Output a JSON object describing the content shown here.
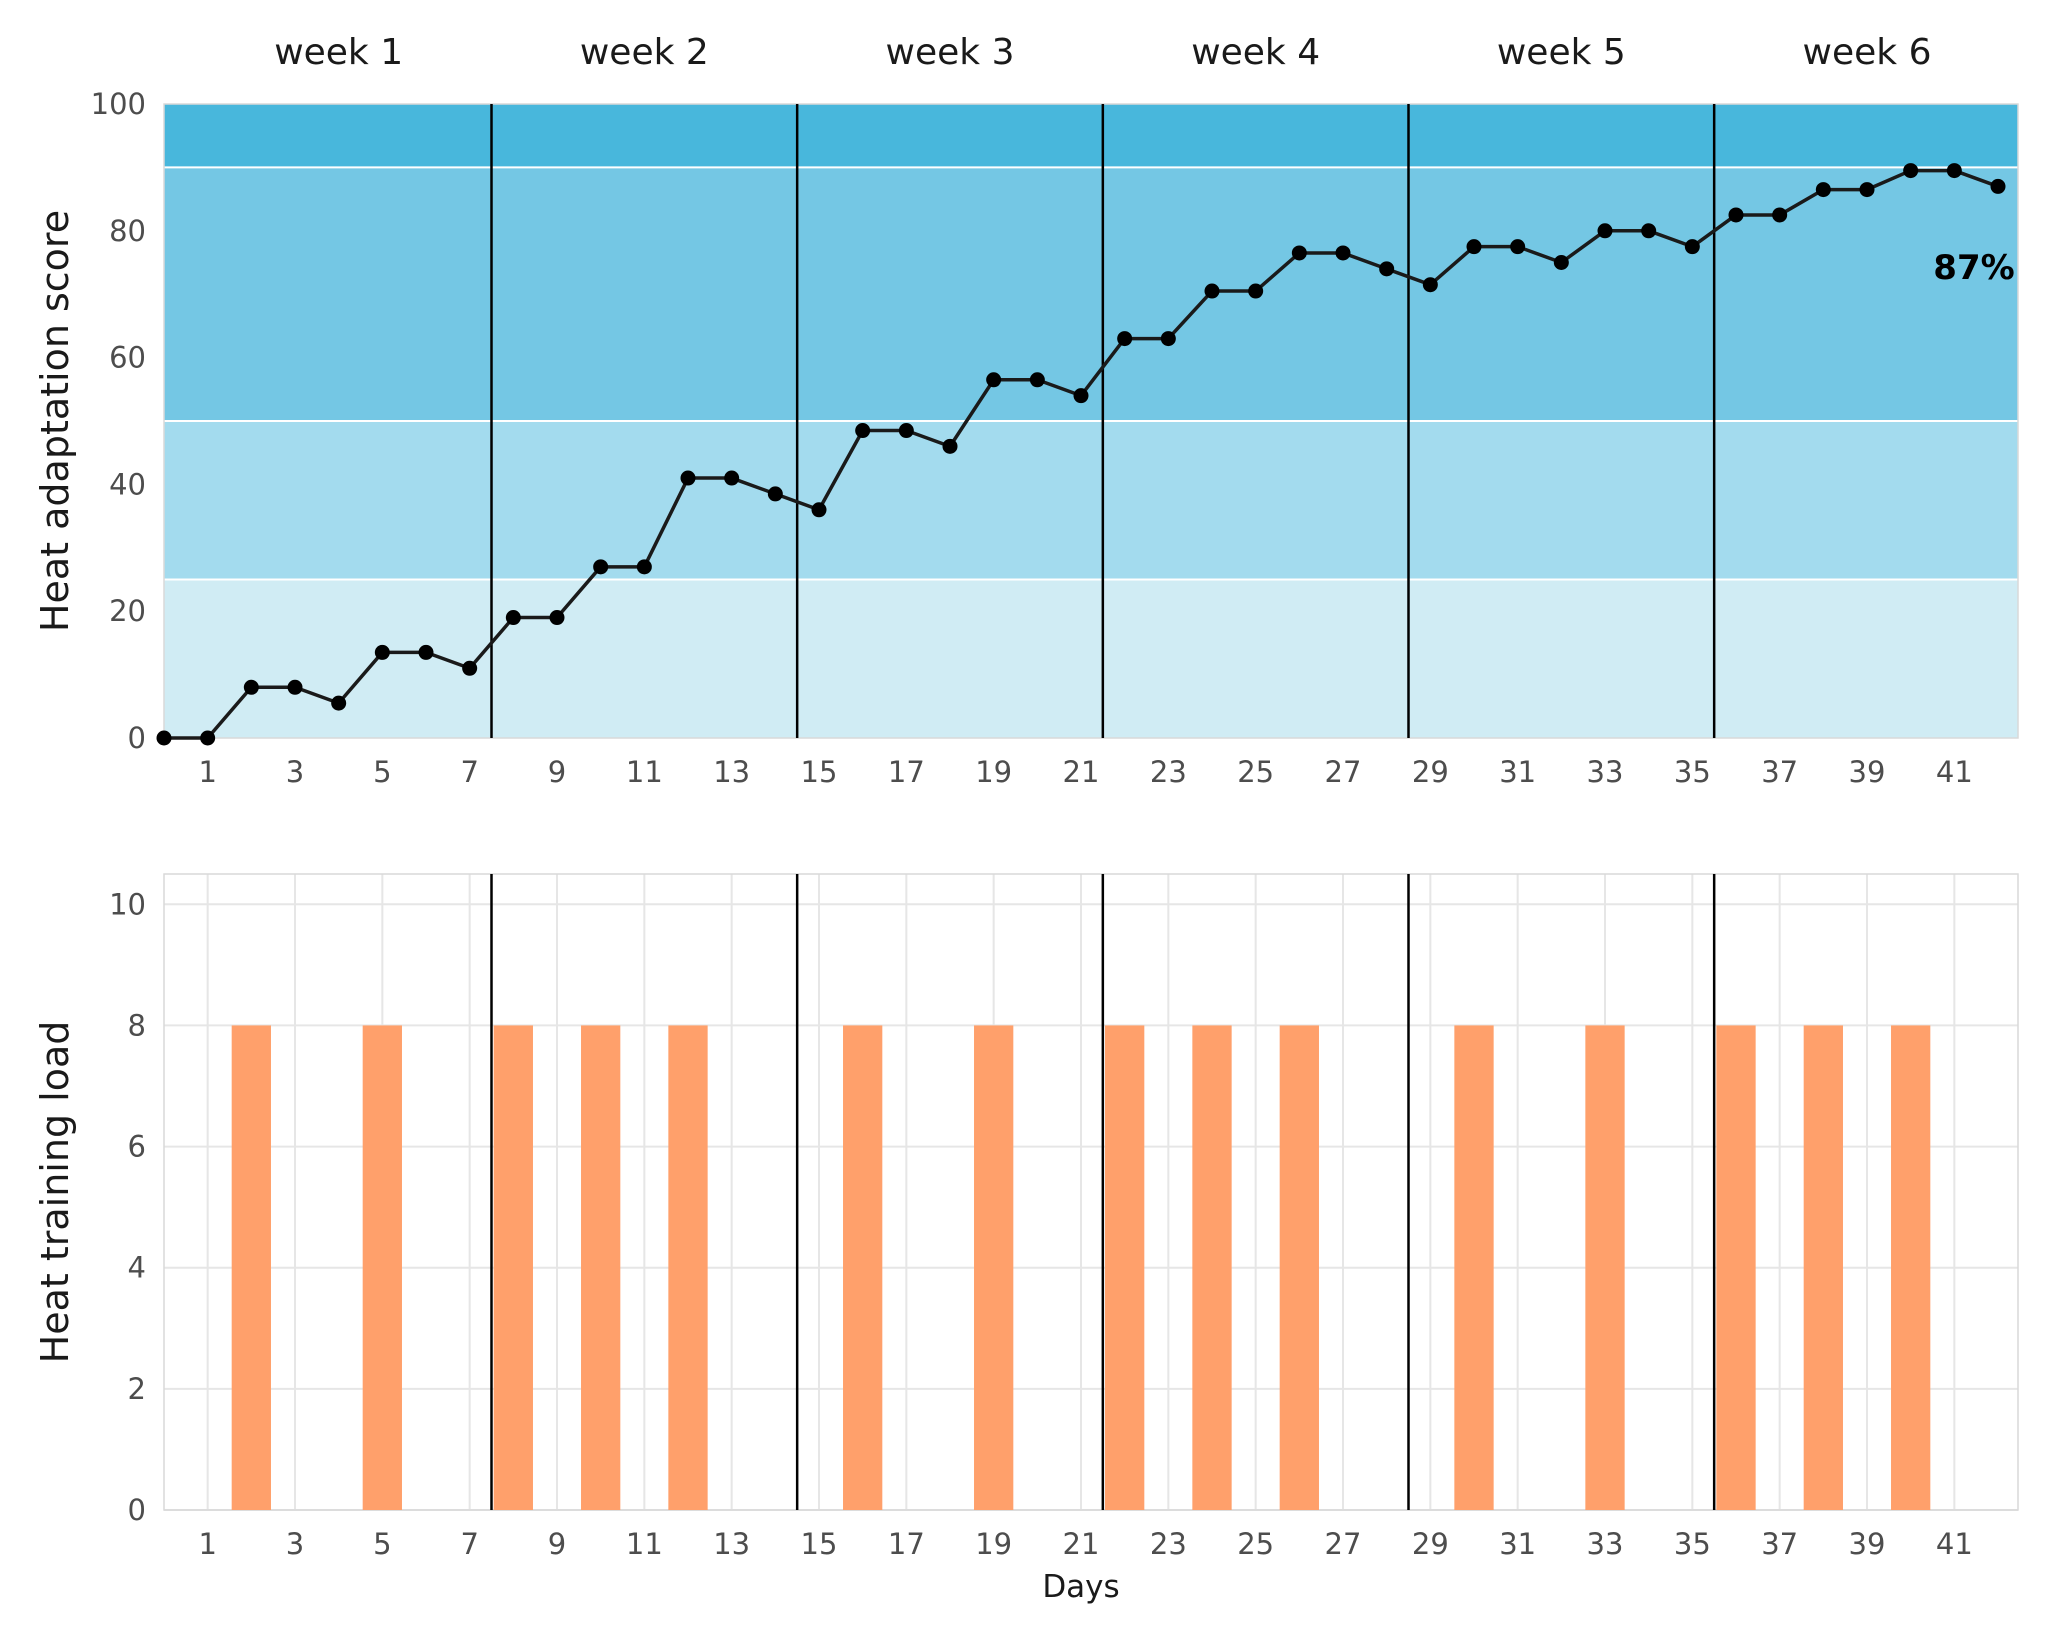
{
  "chart_data": [
    {
      "type": "line",
      "ylabel": "Heat adaptation score",
      "xlabel": "",
      "xlim": [
        0,
        42
      ],
      "ylim": [
        0,
        100
      ],
      "x_ticks": [
        1,
        3,
        5,
        7,
        9,
        11,
        13,
        15,
        17,
        19,
        21,
        23,
        25,
        27,
        29,
        31,
        33,
        35,
        37,
        39,
        41
      ],
      "y_ticks": [
        0,
        20,
        40,
        60,
        80,
        100
      ],
      "weeks": [
        "week 1",
        "week 2",
        "week 3",
        "week 4",
        "week 5",
        "week 6"
      ],
      "week_dividers": [
        7.5,
        14.5,
        21.5,
        28.5,
        35.5
      ],
      "bands": [
        {
          "from": 0,
          "to": 25,
          "color": "#d0ecf4"
        },
        {
          "from": 25,
          "to": 50,
          "color": "#a3dbee"
        },
        {
          "from": 50,
          "to": 90,
          "color": "#74c7e4"
        },
        {
          "from": 90,
          "to": 100,
          "color": "#48b7dc"
        }
      ],
      "end_label": "87%",
      "line_color": "#1a1a1a",
      "x": [
        0,
        1,
        2,
        3,
        4,
        5,
        6,
        7,
        8,
        9,
        10,
        11,
        12,
        13,
        14,
        15,
        16,
        17,
        18,
        19,
        20,
        21,
        22,
        23,
        24,
        25,
        26,
        27,
        28,
        29,
        30,
        31,
        32,
        33,
        34,
        35,
        36,
        37,
        38,
        39,
        40,
        41,
        42
      ],
      "values": [
        0,
        0,
        8,
        8,
        5.5,
        13.5,
        13.5,
        11,
        19,
        19,
        27,
        27,
        41,
        41,
        38.5,
        36,
        48.5,
        48.5,
        46,
        56.5,
        56.5,
        54,
        63,
        63,
        70.5,
        70.5,
        76.5,
        76.5,
        74,
        71.5,
        77.5,
        77.5,
        75,
        80,
        80,
        77.5,
        82.5,
        82.5,
        86.5,
        86.5,
        89.5,
        89.5,
        87
      ]
    },
    {
      "type": "bar",
      "ylabel": "Heat training load",
      "xlabel": "Days",
      "xlim": [
        0,
        42
      ],
      "ylim": [
        0,
        10.5
      ],
      "x_ticks": [
        1,
        3,
        5,
        7,
        9,
        11,
        13,
        15,
        17,
        19,
        21,
        23,
        25,
        27,
        29,
        31,
        33,
        35,
        37,
        39,
        41
      ],
      "y_ticks": [
        0,
        2,
        4,
        6,
        8,
        10
      ],
      "week_dividers": [
        7.5,
        14.5,
        21.5,
        28.5,
        35.5
      ],
      "bar_color": "#ffa06b",
      "x": [
        2,
        5,
        8,
        10,
        12,
        16,
        19,
        22,
        24,
        26,
        30,
        33,
        36,
        38,
        40
      ],
      "values": [
        8,
        8,
        8,
        8,
        8,
        8,
        8,
        8,
        8,
        8,
        8,
        8,
        8,
        8,
        8
      ]
    }
  ]
}
